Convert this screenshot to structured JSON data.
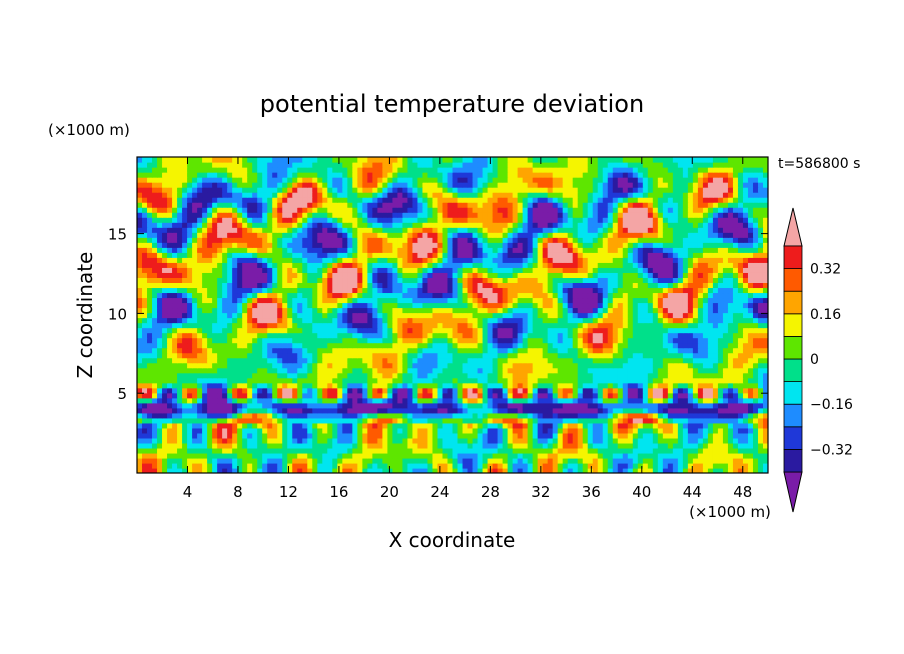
{
  "chart_data": {
    "type": "heatmap",
    "title": "potential temperature deviation",
    "xlabel": "X coordinate",
    "ylabel": "Z coordinate",
    "x_unit_label": "(×1000 m)",
    "y_unit_label": "(×1000 m)",
    "time_label": "t=586800 s",
    "xlim": [
      0,
      50
    ],
    "ylim": [
      0,
      19.8
    ],
    "x_ticks": [
      4,
      8,
      12,
      16,
      20,
      24,
      28,
      32,
      36,
      40,
      44,
      48
    ],
    "y_ticks": [
      5,
      10,
      15
    ],
    "colorbar": {
      "levels": [
        -0.4,
        -0.32,
        -0.24,
        -0.16,
        -0.08,
        0,
        0.08,
        0.16,
        0.24,
        0.32,
        0.4
      ],
      "labeled_levels": [
        0.32,
        0.16,
        0,
        -0.16,
        -0.32
      ],
      "labels": [
        "0.32",
        "0.16",
        "0",
        "−0.16",
        "−0.32"
      ],
      "colors": [
        "#7a1ca8",
        "#2a1aa0",
        "#1f38d8",
        "#1e8cff",
        "#00e5f0",
        "#00e08a",
        "#5ee600",
        "#f5f500",
        "#ffa500",
        "#ff5a00",
        "#ee1c1c",
        "#f4a5a5"
      ],
      "extend": "both"
    },
    "field_description": "contour-filled perturbation field; strong negative layer near z≈4 km, alternating bands aloft",
    "sample_field": {
      "layers": [
        {
          "z": 2.0,
          "pattern": "columns",
          "amp": 0.28
        },
        {
          "z": 4.0,
          "pattern": "strong-negative-layer",
          "amp": -0.45
        },
        {
          "z": 5.2,
          "pattern": "mixed-positive",
          "amp": 0.35
        },
        {
          "z": 9.0,
          "pattern": "cells",
          "amp": 0.3
        },
        {
          "z": 13.5,
          "pattern": "cells",
          "amp": 0.45
        },
        {
          "z": 17.0,
          "pattern": "cells",
          "amp": 0.4
        }
      ]
    }
  }
}
